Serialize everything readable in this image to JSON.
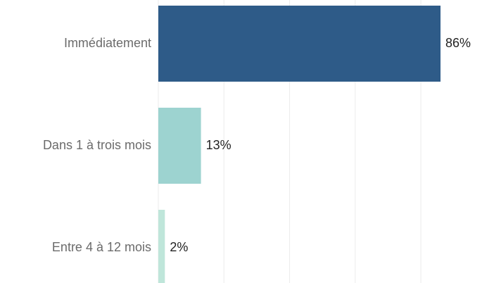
{
  "chart_data": {
    "type": "bar",
    "orientation": "horizontal",
    "categories": [
      "Immédiatement",
      "Dans 1 à trois mois",
      "Entre 4 à 12 mois"
    ],
    "values": [
      86,
      13,
      2
    ],
    "value_labels": [
      "86%",
      "13%",
      "2%"
    ],
    "colors": [
      "#2e5b88",
      "#9dd3d0",
      "#bfe6da"
    ],
    "xlim": [
      0,
      98
    ],
    "xticks": [
      0,
      20,
      40,
      60,
      80
    ],
    "grid": true
  }
}
